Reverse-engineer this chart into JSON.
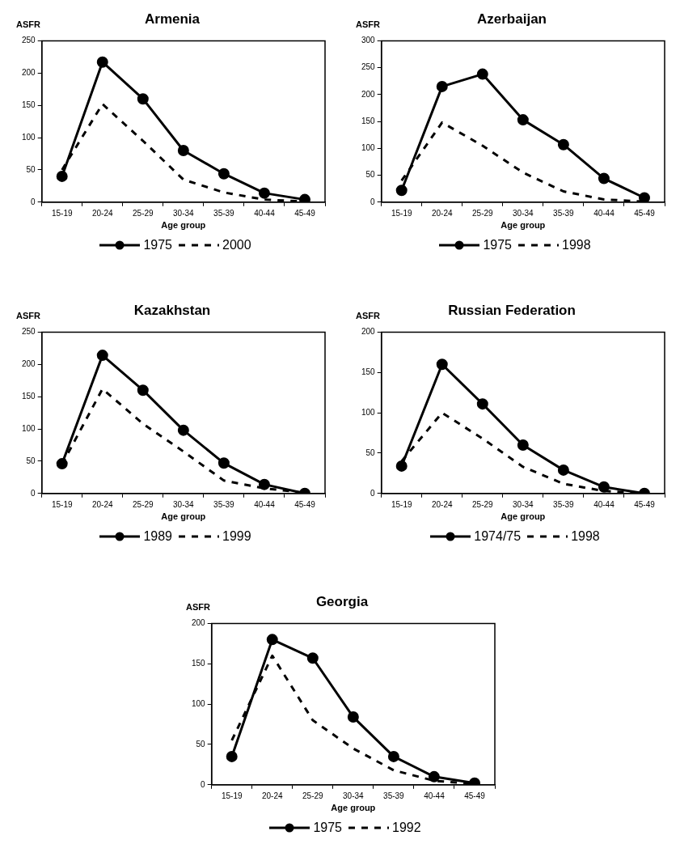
{
  "chart_data": [
    {
      "type": "line",
      "title": "Armenia",
      "xlabel": "Age group",
      "ylabel": "ASFR",
      "categories": [
        "15-19",
        "20-24",
        "25-29",
        "30-34",
        "35-39",
        "40-44",
        "45-49"
      ],
      "ylim": [
        0,
        250
      ],
      "yticks": [
        0,
        50,
        100,
        150,
        200,
        250
      ],
      "grid": false,
      "legend": "bottom",
      "series": [
        {
          "name": "1975",
          "color": "#000000",
          "marker": "circle",
          "line_style": "solid",
          "values": [
            40,
            217,
            160,
            80,
            44,
            14,
            4
          ]
        },
        {
          "name": "2000",
          "color": "#000000",
          "marker": "none",
          "line_style": "dashed",
          "values": [
            50,
            152,
            95,
            35,
            15,
            4,
            1
          ]
        }
      ]
    },
    {
      "type": "line",
      "title": "Azerbaijan",
      "xlabel": "Age group",
      "ylabel": "ASFR",
      "categories": [
        "15-19",
        "20-24",
        "25-29",
        "30-34",
        "35-39",
        "40-44",
        "45-49"
      ],
      "ylim": [
        0,
        300
      ],
      "yticks": [
        0,
        50,
        100,
        150,
        200,
        250,
        300
      ],
      "grid": false,
      "legend": "bottom",
      "series": [
        {
          "name": "1975",
          "color": "#000000",
          "marker": "circle",
          "line_style": "solid",
          "values": [
            22,
            215,
            238,
            153,
            107,
            44,
            8
          ]
        },
        {
          "name": "1998",
          "color": "#000000",
          "marker": "none",
          "line_style": "dashed",
          "values": [
            40,
            148,
            105,
            55,
            20,
            5,
            1
          ]
        }
      ]
    },
    {
      "type": "line",
      "title": "Kazakhstan",
      "xlabel": "Age group",
      "ylabel": "ASFR",
      "categories": [
        "15-19",
        "20-24",
        "25-29",
        "30-34",
        "35-39",
        "40-44",
        "45-49"
      ],
      "ylim": [
        0,
        250
      ],
      "yticks": [
        0,
        50,
        100,
        150,
        200,
        250
      ],
      "grid": false,
      "legend": "bottom",
      "series": [
        {
          "name": "1989",
          "color": "#000000",
          "marker": "circle",
          "line_style": "solid",
          "values": [
            46,
            214,
            160,
            98,
            47,
            14,
            0
          ]
        },
        {
          "name": "1999",
          "color": "#000000",
          "marker": "none",
          "line_style": "dashed",
          "values": [
            45,
            162,
            108,
            65,
            20,
            8,
            1
          ]
        }
      ]
    },
    {
      "type": "line",
      "title": "Russian Federation",
      "xlabel": "Age group",
      "ylabel": "ASFR",
      "categories": [
        "15-19",
        "20-24",
        "25-29",
        "30-34",
        "35-39",
        "40-44",
        "45-49"
      ],
      "ylim": [
        0,
        200
      ],
      "yticks": [
        0,
        50,
        100,
        150,
        200
      ],
      "grid": false,
      "legend": "bottom",
      "series": [
        {
          "name": "1974/75",
          "color": "#000000",
          "marker": "circle",
          "line_style": "solid",
          "values": [
            34,
            160,
            111,
            60,
            29,
            8,
            0
          ]
        },
        {
          "name": "1998",
          "color": "#000000",
          "marker": "none",
          "line_style": "dashed",
          "values": [
            40,
            100,
            68,
            33,
            12,
            3,
            0
          ]
        }
      ]
    },
    {
      "type": "line",
      "title": "Georgia",
      "xlabel": "Age group",
      "ylabel": "ASFR",
      "categories": [
        "15-19",
        "20-24",
        "25-29",
        "30-34",
        "35-39",
        "40-44",
        "45-49"
      ],
      "ylim": [
        0,
        200
      ],
      "yticks": [
        0,
        50,
        100,
        150,
        200
      ],
      "grid": false,
      "legend": "bottom",
      "series": [
        {
          "name": "1975",
          "color": "#000000",
          "marker": "circle",
          "line_style": "solid",
          "values": [
            35,
            180,
            157,
            84,
            35,
            10,
            2
          ]
        },
        {
          "name": "1992",
          "color": "#000000",
          "marker": "none",
          "line_style": "dashed",
          "values": [
            55,
            160,
            80,
            45,
            18,
            5,
            1
          ]
        }
      ]
    }
  ]
}
